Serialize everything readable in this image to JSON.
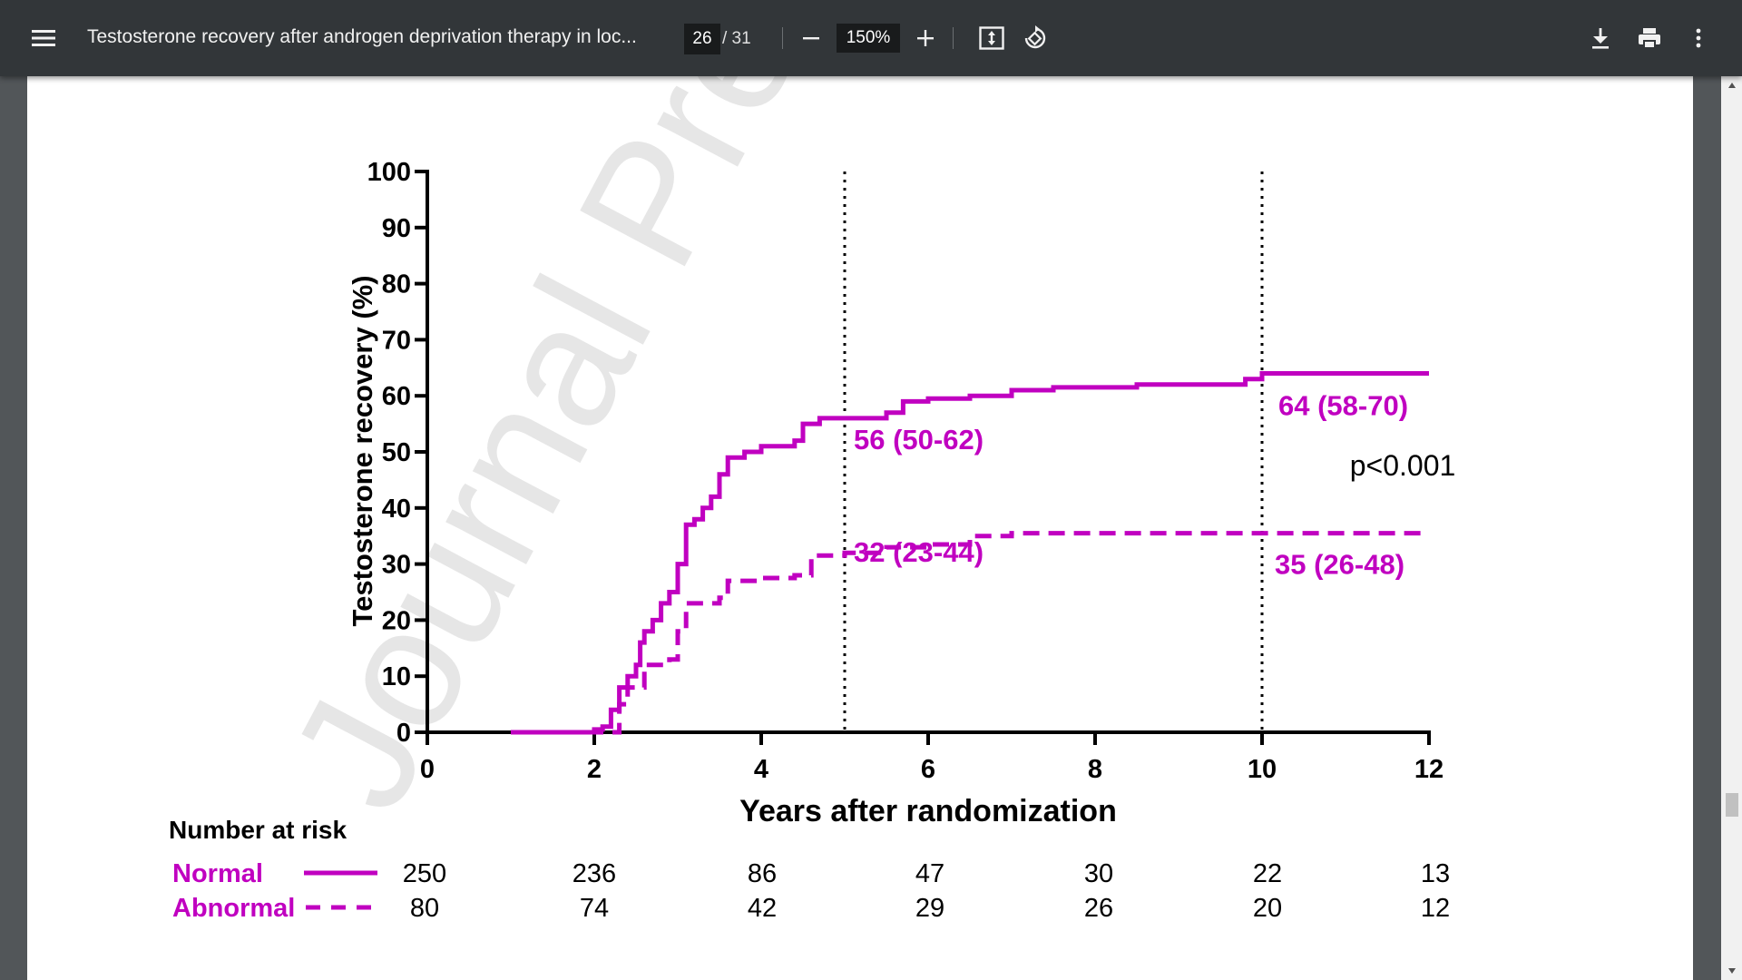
{
  "toolbar": {
    "title": "Testosterone recovery after androgen deprivation therapy in loc...",
    "current_page": "26",
    "total_pages": "/ 31",
    "zoom": "150%",
    "icons": [
      "menu-icon",
      "zoom-out-icon",
      "zoom-in-icon",
      "fit-page-icon",
      "rotate-icon",
      "download-icon",
      "print-icon",
      "more-options-icon"
    ]
  },
  "document": {
    "watermark": "Journal Pre"
  },
  "chart_data": {
    "type": "line",
    "xlabel": "Years after randomization",
    "ylabel": "Testosterone recovery (%)",
    "xlim": [
      0,
      12
    ],
    "ylim": [
      0,
      100
    ],
    "x_ticks": [
      "0",
      "2",
      "4",
      "6",
      "8",
      "10",
      "12"
    ],
    "y_ticks": [
      "0",
      "10",
      "20",
      "30",
      "40",
      "50",
      "60",
      "70",
      "80",
      "90",
      "100"
    ],
    "reference_lines_x": [
      5,
      10
    ],
    "accent_color": "#c000c0",
    "series": [
      {
        "name": "Normal",
        "style": "solid",
        "points": [
          [
            1,
            0
          ],
          [
            1.5,
            0
          ],
          [
            2,
            0.5
          ],
          [
            2.1,
            1
          ],
          [
            2.2,
            4
          ],
          [
            2.3,
            8
          ],
          [
            2.4,
            10
          ],
          [
            2.5,
            12
          ],
          [
            2.55,
            16
          ],
          [
            2.6,
            18
          ],
          [
            2.7,
            20
          ],
          [
            2.8,
            23
          ],
          [
            2.9,
            25
          ],
          [
            3.0,
            30
          ],
          [
            3.1,
            37
          ],
          [
            3.2,
            38
          ],
          [
            3.3,
            40
          ],
          [
            3.4,
            42
          ],
          [
            3.5,
            46
          ],
          [
            3.6,
            49
          ],
          [
            3.8,
            50
          ],
          [
            4.0,
            51
          ],
          [
            4.4,
            52
          ],
          [
            4.5,
            55
          ],
          [
            4.7,
            56
          ],
          [
            5.0,
            56
          ],
          [
            5.5,
            57
          ],
          [
            5.7,
            59
          ],
          [
            6.0,
            59.5
          ],
          [
            6.5,
            60
          ],
          [
            7.0,
            61
          ],
          [
            7.5,
            61.5
          ],
          [
            8.0,
            61.5
          ],
          [
            8.5,
            62
          ],
          [
            9.5,
            62
          ],
          [
            9.8,
            63
          ],
          [
            10,
            64
          ],
          [
            12,
            64
          ]
        ]
      },
      {
        "name": "Abnormal",
        "style": "dashed",
        "points": [
          [
            1,
            0
          ],
          [
            1.5,
            0
          ],
          [
            2,
            0
          ],
          [
            2.25,
            0
          ],
          [
            2.3,
            5
          ],
          [
            2.4,
            8
          ],
          [
            2.6,
            12
          ],
          [
            2.9,
            13
          ],
          [
            3.0,
            18
          ],
          [
            3.1,
            23
          ],
          [
            3.5,
            24
          ],
          [
            3.6,
            27
          ],
          [
            4.0,
            27.5
          ],
          [
            4.4,
            28
          ],
          [
            4.6,
            31.5
          ],
          [
            5.0,
            32
          ],
          [
            5.5,
            33
          ],
          [
            6.0,
            33.5
          ],
          [
            6.5,
            35
          ],
          [
            7.0,
            35.5
          ],
          [
            8.0,
            35.5
          ],
          [
            10,
            35.5
          ],
          [
            12,
            35.5
          ]
        ]
      }
    ],
    "annotations": [
      {
        "text": "56 (50-62)",
        "x": 5,
        "y": 56
      },
      {
        "text": "32 (23-44)",
        "x": 5,
        "y": 32
      },
      {
        "text": "64 (58-70)",
        "x": 10,
        "y": 64
      },
      {
        "text": "35 (26-48)",
        "x": 10,
        "y": 35
      },
      {
        "text": "p<0.001",
        "x": 11,
        "y": 46
      }
    ],
    "risk_table": {
      "title": "Number at risk",
      "rows": [
        {
          "label": "Normal",
          "style": "solid",
          "values": [
            "250",
            "236",
            "86",
            "47",
            "30",
            "22",
            "13"
          ]
        },
        {
          "label": "Abnormal",
          "style": "dashed",
          "values": [
            "80",
            "74",
            "42",
            "29",
            "26",
            "20",
            "12"
          ]
        }
      ]
    }
  }
}
